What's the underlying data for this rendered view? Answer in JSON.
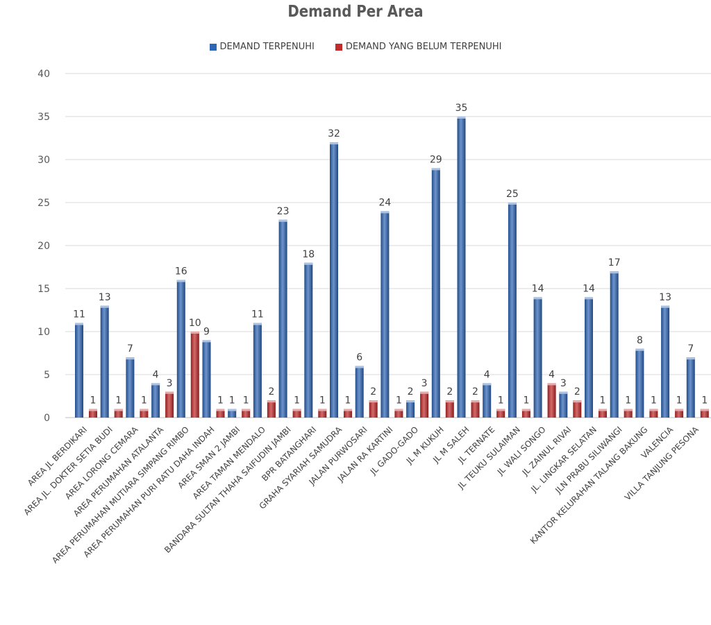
{
  "chart_data": {
    "type": "bar",
    "title": "Demand Per Area",
    "xlabel": "",
    "ylabel": "",
    "ylim": [
      0,
      40
    ],
    "yticks": [
      0,
      5,
      10,
      15,
      20,
      25,
      30,
      35,
      40
    ],
    "grid": true,
    "legend_position": "top",
    "categories": [
      "AREA JL BERDIKARI",
      "AREA JL. DOKTER SETIA BUDI",
      "AREA LORONG CEMARA",
      "AREA PERUMAHAN ATALANTA",
      "AREA PERUMAHAN MUTIARA SIMPANG RIMBO",
      "AREA PERUMAHAN PURI RATU DAHA INDAH",
      "AREA SMAN 2 JAMBI",
      "AREA TAMAN MENDALO",
      "BANDARA SULTAN THAHA SAIFUDIN JAMBI",
      "BPR BATANGHARI",
      "GRAHA SYARIAH SAMUDRA",
      "JALAN PURWOSARI",
      "JALAN RA KARTINI",
      "JL GADO-GADO",
      "JL M KUKUH",
      "JL M SALEH",
      "JL TERNATE",
      "JL TEUKU SULAIMAN",
      "JL WALI SONGO",
      "JL ZAINUL RIVAI",
      "JL. LINGKAR SELATAN",
      "JLN PRABU SILIWANGI",
      "KANTOR KELURAHAN TALANG BAKUNG",
      "VALENCIA",
      "VILLA TANJUNG PESONA"
    ],
    "series": [
      {
        "name": "DEMAND TERPENUHI",
        "color": "#2e66b6",
        "values": [
          11,
          13,
          7,
          4,
          16,
          9,
          1,
          11,
          23,
          18,
          32,
          6,
          24,
          2,
          29,
          35,
          4,
          25,
          14,
          3,
          14,
          17,
          8,
          13,
          7
        ]
      },
      {
        "name": "DEMAND YANG BELUM TERPENUHI",
        "color": "#c32a2a",
        "values": [
          1,
          1,
          1,
          3,
          10,
          1,
          1,
          2,
          1,
          1,
          1,
          2,
          1,
          3,
          2,
          2,
          1,
          1,
          4,
          2,
          1,
          1,
          1,
          1,
          1
        ]
      }
    ]
  }
}
